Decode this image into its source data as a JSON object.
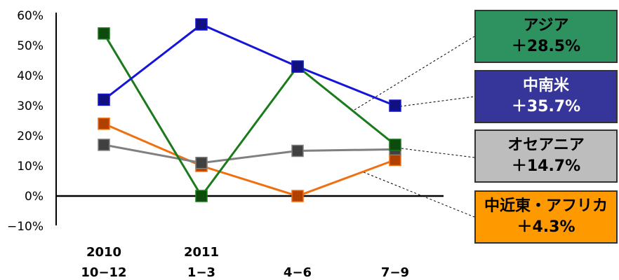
{
  "chart_data": {
    "type": "line",
    "categories": [
      "2010\n10-12",
      "2011\n1-3",
      "4-6",
      "7-9"
    ],
    "ylim": [
      -10,
      60
    ],
    "yticks": [
      60,
      50,
      40,
      30,
      20,
      10,
      0,
      -10
    ],
    "ytick_labels": [
      "60%",
      "50%",
      "40%",
      "30%",
      "20%",
      "10%",
      "0%",
      "−10%"
    ],
    "xtick_labels": [
      [
        "2010",
        "10−12"
      ],
      [
        "2011",
        "1−3"
      ],
      [
        "",
        "4−6"
      ],
      [
        "",
        "7−9"
      ]
    ],
    "legend_placement": "right",
    "series": [
      {
        "name": "アジア",
        "change": "＋28.5%",
        "color": "#1b7a1b",
        "marker": "#0d4a0d",
        "box_color": "#2e9160",
        "text_color": "#000000",
        "values": [
          54,
          0,
          43,
          17
        ]
      },
      {
        "name": "中南米",
        "change": "＋35.7%",
        "color": "#1515d6",
        "marker": "#101080",
        "box_color": "#35359a",
        "text_color": "#ffffff",
        "values": [
          32,
          57,
          43,
          30
        ]
      },
      {
        "name": "オセアニア",
        "change": "＋14.7%",
        "color": "#808080",
        "marker": "#404040",
        "box_color": "#bdbdbd",
        "text_color": "#000000",
        "values": [
          17,
          11,
          15,
          15.5
        ]
      },
      {
        "name": "中近東・アフリカ",
        "change": "＋4.3%",
        "color": "#f07010",
        "marker": "#b04000",
        "box_color": "#ff9900",
        "text_color": "#000000",
        "values": [
          24,
          10,
          0,
          12
        ]
      }
    ]
  }
}
